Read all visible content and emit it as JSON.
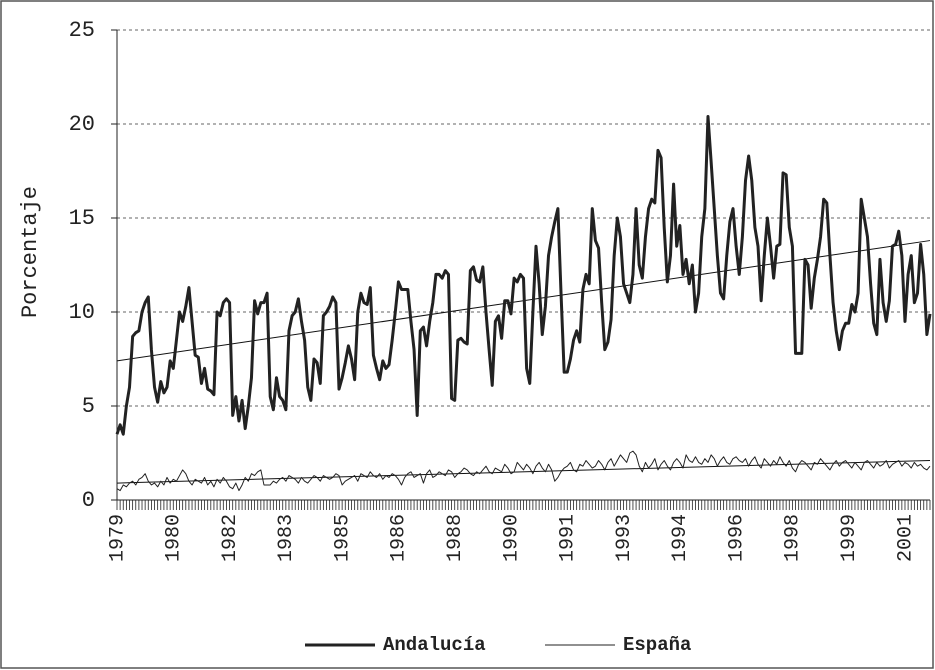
{
  "chart_data": {
    "type": "line",
    "y_label": "Porcentaje",
    "categories": [
      "1979",
      null,
      null,
      null,
      null,
      null,
      null,
      null,
      null,
      null,
      null,
      null,
      null,
      null,
      null,
      null,
      null,
      null,
      "1980",
      null,
      null,
      null,
      null,
      null,
      null,
      null,
      null,
      null,
      null,
      null,
      null,
      null,
      null,
      null,
      null,
      null,
      "1982",
      null,
      null,
      null,
      null,
      null,
      null,
      null,
      null,
      null,
      null,
      null,
      null,
      null,
      null,
      null,
      null,
      null,
      "1983",
      null,
      null,
      null,
      null,
      null,
      null,
      null,
      null,
      null,
      null,
      null,
      null,
      null,
      null,
      null,
      null,
      null,
      "1985",
      null,
      null,
      null,
      null,
      null,
      null,
      null,
      null,
      null,
      null,
      null,
      null,
      null,
      null,
      null,
      null,
      null,
      "1986",
      null,
      null,
      null,
      null,
      null,
      null,
      null,
      null,
      null,
      null,
      null,
      null,
      null,
      null,
      null,
      null,
      null,
      "1988",
      null,
      null,
      null,
      null,
      null,
      null,
      null,
      null,
      null,
      null,
      null,
      null,
      null,
      null,
      null,
      null,
      null,
      "1990",
      null,
      null,
      null,
      null,
      null,
      null,
      null,
      null,
      null,
      null,
      null,
      null,
      null,
      null,
      null,
      null,
      null,
      "1991",
      null,
      null,
      null,
      null,
      null,
      null,
      null,
      null,
      null,
      null,
      null,
      null,
      null,
      null,
      null,
      null,
      null,
      "1993",
      null,
      null,
      null,
      null,
      null,
      null,
      null,
      null,
      null,
      null,
      null,
      null,
      null,
      null,
      null,
      null,
      null,
      "1994",
      null,
      null,
      null,
      null,
      null,
      null,
      null,
      null,
      null,
      null,
      null,
      null,
      null,
      null,
      null,
      null,
      null,
      "1996",
      null,
      null,
      null,
      null,
      null,
      null,
      null,
      null,
      null,
      null,
      null,
      null,
      null,
      null,
      null,
      null,
      null,
      "1998",
      null,
      null,
      null,
      null,
      null,
      null,
      null,
      null,
      null,
      null,
      null,
      null,
      null,
      null,
      null,
      null,
      null,
      "1999",
      null,
      null,
      null,
      null,
      null,
      null,
      null,
      null,
      null,
      null,
      null,
      null,
      null,
      null,
      null,
      null,
      null,
      "2001",
      null,
      null,
      null,
      null,
      null,
      null,
      null,
      null
    ],
    "series": [
      {
        "name": "Andalucía",
        "color": "#222222",
        "width": 3,
        "values": [
          3.5,
          4,
          3.5,
          5,
          6,
          8.7,
          8.9,
          9,
          10,
          10.5,
          10.8,
          8,
          6,
          5.2,
          6.3,
          5.7,
          6,
          7.4,
          7,
          8.5,
          10,
          9.5,
          10.3,
          11.3,
          9.5,
          7.7,
          7.6,
          6.2,
          7,
          5.9,
          5.8,
          5.6,
          10,
          9.8,
          10.5,
          10.7,
          10.5,
          4.5,
          5.5,
          4.2,
          5.3,
          3.8,
          5,
          6.5,
          10.6,
          9.9,
          10.5,
          10.5,
          11,
          5.5,
          4.8,
          6.5,
          5.5,
          5.3,
          4.8,
          9,
          9.8,
          10,
          10.7,
          9.5,
          8.5,
          6,
          5.3,
          7.5,
          7.3,
          6.2,
          9.8,
          10,
          10.3,
          10.8,
          10.5,
          5.9,
          6.5,
          7.3,
          8.2,
          7.5,
          6.4,
          10,
          11,
          10.5,
          10.4,
          11.3,
          7.7,
          7,
          6.4,
          7.4,
          7,
          7.2,
          8.5,
          10,
          11.6,
          11.2,
          11.2,
          11.2,
          9.5,
          8,
          4.5,
          9,
          9.2,
          8.2,
          9.5,
          10.5,
          12,
          12,
          11.8,
          12.2,
          12,
          5.4,
          5.3,
          8.5,
          8.6,
          8.4,
          8.3,
          12.2,
          12.4,
          11.7,
          11.6,
          12.4,
          10,
          8,
          6.1,
          9.5,
          9.8,
          8.6,
          10.6,
          10.6,
          9.9,
          11.8,
          11.6,
          12,
          11.8,
          7,
          6.2,
          10,
          13.5,
          11.5,
          8.8,
          10.3,
          13,
          14,
          14.8,
          15.5,
          11,
          6.8,
          6.8,
          7.5,
          8.5,
          9,
          8.4,
          11.2,
          12,
          11.5,
          15.5,
          13.8,
          13.4,
          10.5,
          8,
          8.4,
          9.6,
          13,
          15,
          14,
          11.5,
          11,
          10.5,
          12,
          15.5,
          12.5,
          11.8,
          14,
          15.5,
          16,
          15.8,
          18.6,
          18.2,
          14.5,
          11.6,
          13,
          16.8,
          13.5,
          14.6,
          12,
          12.8,
          11.5,
          12.5,
          10,
          11,
          14,
          15.5,
          20.4,
          18,
          15.5,
          13,
          11,
          10.7,
          13,
          14.8,
          15.5,
          13.5,
          12,
          14,
          17,
          18.3,
          17,
          14.5,
          13.5,
          10.6,
          13,
          15,
          13.5,
          11.8,
          13.5,
          13.6,
          17.4,
          17.3,
          14.5,
          13.5,
          7.8,
          7.8,
          7.8,
          12.8,
          12.5,
          10.2,
          11.8,
          12.8,
          14,
          16,
          15.8,
          13,
          10.5,
          9,
          8,
          9,
          9.4,
          9.4,
          10.4,
          10,
          11,
          16,
          15,
          14,
          11.5,
          9.4,
          8.8,
          12.8,
          10.5,
          9.5,
          10.6,
          13.5,
          13.6,
          14.3,
          13,
          9.5,
          12,
          13,
          10.5,
          11,
          13.6,
          12,
          8.8,
          9.9
        ]
      },
      {
        "name": "España",
        "color": "#222222",
        "width": 1,
        "values": [
          0.6,
          0.5,
          0.8,
          0.7,
          0.9,
          1,
          0.8,
          1.1,
          1.2,
          1.4,
          1,
          0.8,
          0.9,
          0.7,
          1,
          0.8,
          1.2,
          0.9,
          1.1,
          1,
          1.3,
          1.6,
          1.4,
          1,
          0.8,
          1.1,
          1,
          0.9,
          1.2,
          0.8,
          1,
          0.7,
          1.1,
          0.9,
          1.2,
          1,
          0.7,
          0.6,
          0.9,
          0.5,
          0.8,
          1.2,
          1,
          1.4,
          1.3,
          1.5,
          1.6,
          0.8,
          0.8,
          0.8,
          1,
          0.9,
          1.1,
          1.2,
          1,
          1.3,
          1.2,
          1.1,
          0.9,
          1.2,
          1,
          0.9,
          1.1,
          1.3,
          1.2,
          1,
          1.3,
          1.2,
          1.1,
          1.2,
          1.4,
          1.3,
          0.8,
          1,
          1.1,
          1.2,
          1.3,
          1,
          1.4,
          1.3,
          1.2,
          1.5,
          1.3,
          1.2,
          1.4,
          1.1,
          1.3,
          1.2,
          1.4,
          1.3,
          1.1,
          0.8,
          1.2,
          1.4,
          1.5,
          1.2,
          1.3,
          1.4,
          0.9,
          1.4,
          1.6,
          1.2,
          1.3,
          1.5,
          1.4,
          1.3,
          1.6,
          1.5,
          1.2,
          1.4,
          1.5,
          1.7,
          1.6,
          1.4,
          1.3,
          1.5,
          1.4,
          1.6,
          1.8,
          1.5,
          1.4,
          1.7,
          1.6,
          1.5,
          1.9,
          1.7,
          1.4,
          1.5,
          2,
          1.8,
          1.6,
          1.9,
          1.7,
          1.4,
          1.8,
          2,
          1.7,
          1.5,
          1.9,
          1.6,
          1,
          1.2,
          1.5,
          1.7,
          1.8,
          2,
          1.6,
          1.5,
          1.9,
          1.8,
          2.1,
          1.9,
          1.7,
          1.8,
          2.1,
          1.9,
          1.6,
          2,
          2.2,
          1.8,
          2.1,
          2.4,
          2.2,
          2,
          2.5,
          2.6,
          2.4,
          1.8,
          1.5,
          2,
          1.7,
          1.9,
          2.2,
          1.6,
          1.9,
          2.1,
          1.8,
          1.6,
          2,
          2.2,
          2,
          1.7,
          2.4,
          2.1,
          2,
          2.3,
          2,
          1.9,
          2.2,
          2,
          2.4,
          2.2,
          1.8,
          2.1,
          2.3,
          2,
          1.9,
          2.2,
          2.3,
          2.1,
          2,
          2.2,
          1.8,
          2.1,
          2.3,
          1.9,
          1.7,
          2.2,
          2,
          1.8,
          2.1,
          1.9,
          2.3,
          2,
          1.8,
          2.1,
          1.7,
          1.5,
          1.9,
          2.1,
          2,
          1.8,
          1.6,
          2,
          1.9,
          2.2,
          2,
          1.8,
          1.6,
          1.9,
          2.1,
          1.8,
          2,
          2.1,
          1.9,
          1.7,
          2,
          1.8,
          1.6,
          2,
          2.1,
          1.9,
          1.7,
          2,
          1.8,
          1.9,
          2.1,
          1.7,
          1.9,
          2,
          2.1,
          1.8,
          2,
          1.9,
          1.7,
          2,
          1.8,
          1.9,
          1.7,
          1.6,
          1.8
        ]
      }
    ],
    "trendlines": [
      {
        "color": "#111111",
        "values": [
          7.4,
          13.8
        ]
      },
      {
        "color": "#111111",
        "values": [
          0.9,
          2.1
        ]
      }
    ],
    "ylim": [
      0,
      25
    ],
    "yticks": [
      0,
      5,
      10,
      15,
      20,
      25
    ],
    "grid": true,
    "legend": "bottom"
  }
}
